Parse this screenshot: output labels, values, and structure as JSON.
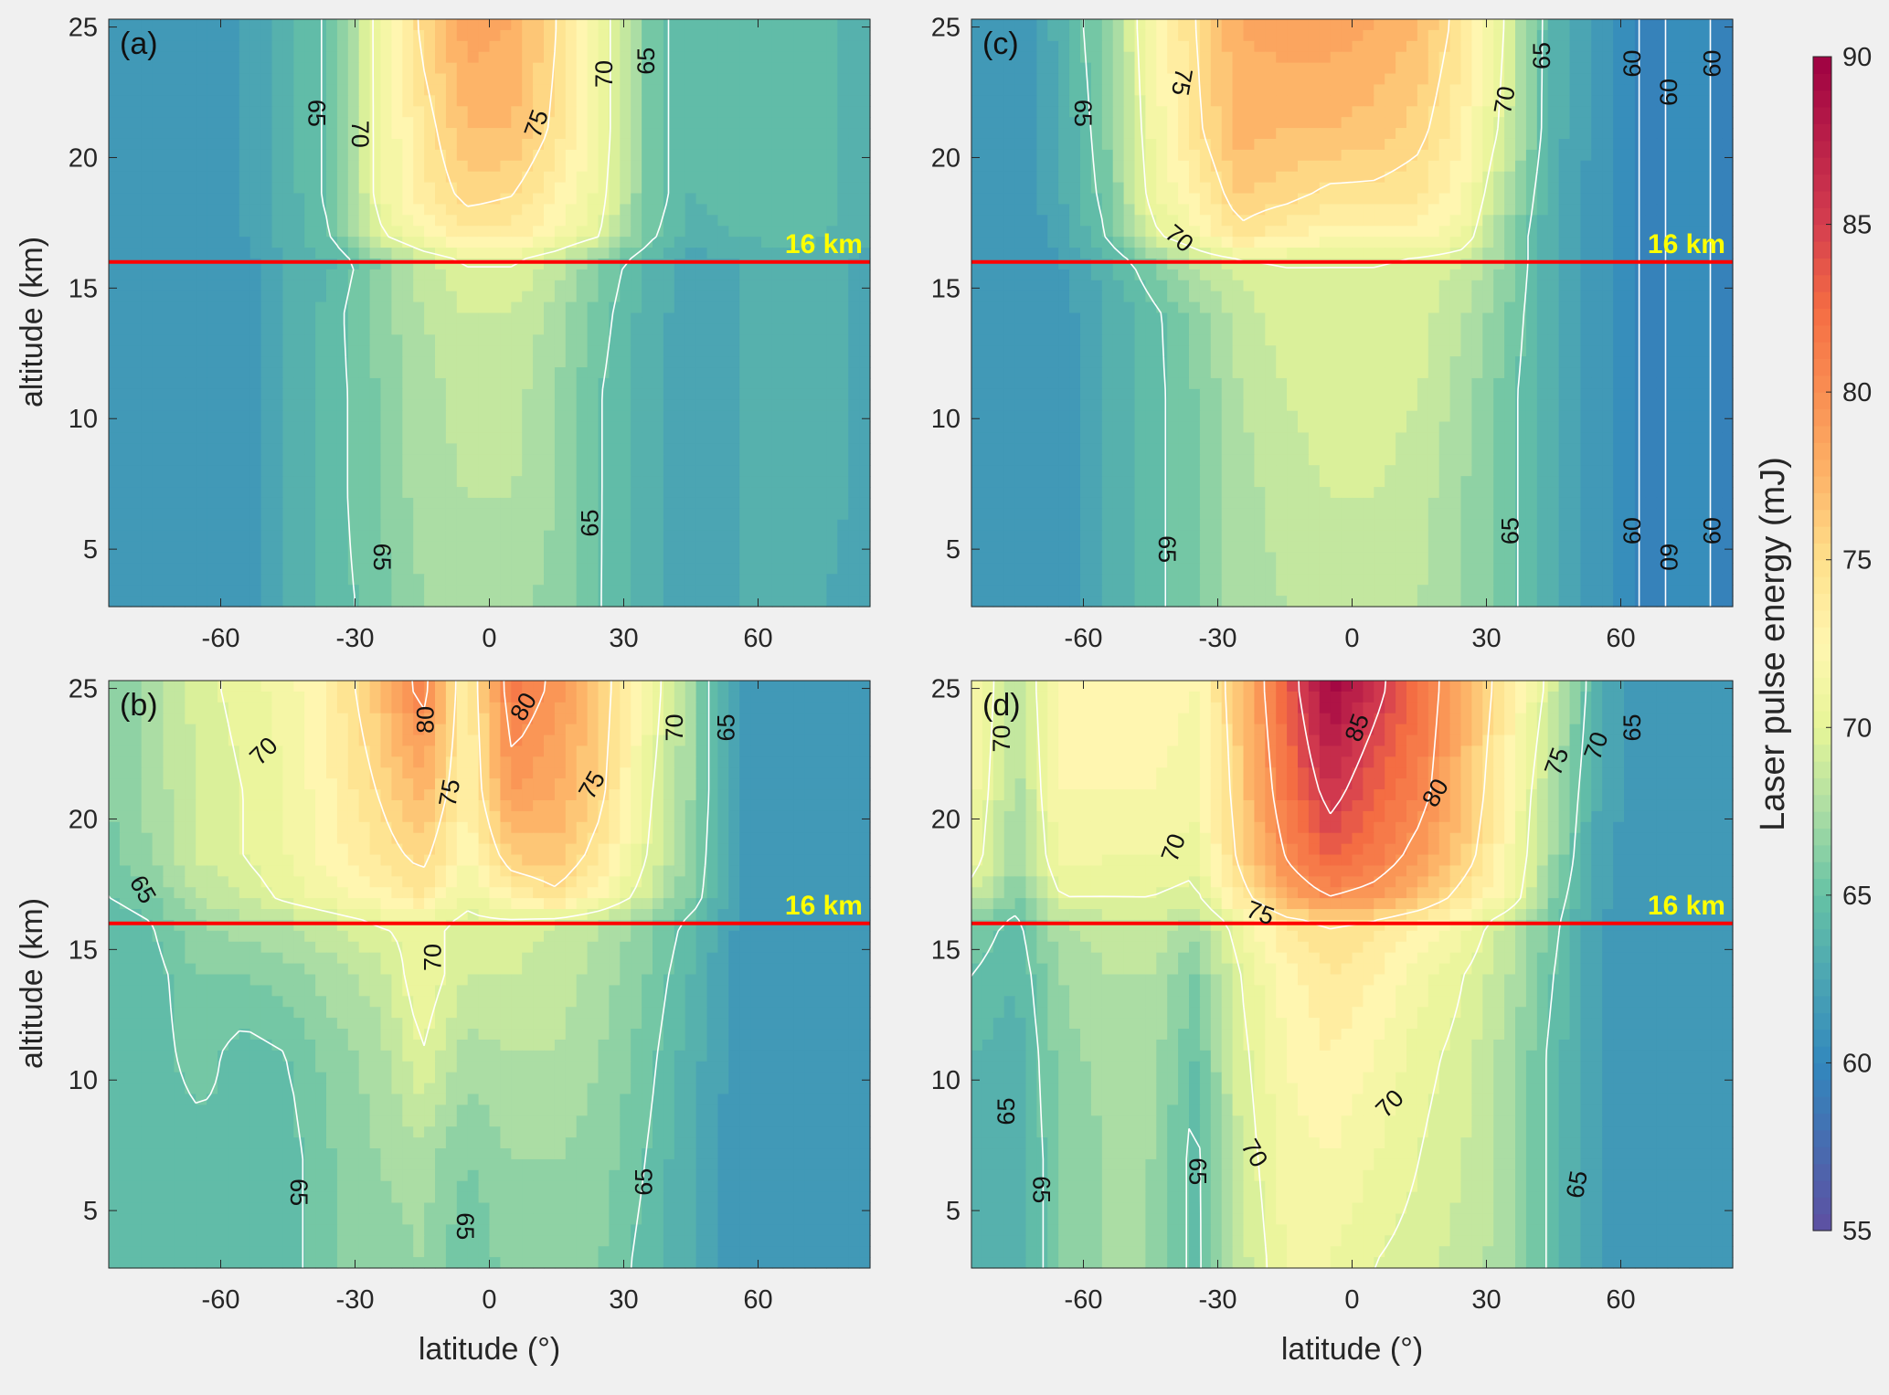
{
  "figure_background": "#f0f0f0",
  "colors": {
    "reference_line": "#ff0000",
    "reference_label": "#ffff00",
    "contour_line": "#ffffff"
  },
  "colorbar": {
    "label": "Laser pulse energy (mJ)",
    "range": [
      55,
      90
    ],
    "ticks": [
      55,
      60,
      65,
      70,
      75,
      80,
      85,
      90
    ],
    "colormap_stops": [
      [
        55,
        "#5e4fa2"
      ],
      [
        60,
        "#3288bd"
      ],
      [
        62.5,
        "#4ba5b3"
      ],
      [
        65,
        "#66c2a5"
      ],
      [
        67.5,
        "#abdda4"
      ],
      [
        70,
        "#e6f598"
      ],
      [
        72.5,
        "#fff6b0"
      ],
      [
        75,
        "#fee08b"
      ],
      [
        77.5,
        "#fdb468"
      ],
      [
        80,
        "#f98e52"
      ],
      [
        82.5,
        "#f46d43"
      ],
      [
        85,
        "#d53e4f"
      ],
      [
        90,
        "#9e0142"
      ]
    ]
  },
  "chart_data": [
    {
      "panel": "(a)",
      "type": "heatmap",
      "xlabel": "",
      "ylabel": "altitude (km)",
      "xlim": [
        -85,
        85
      ],
      "ylim": [
        2.8,
        25.3
      ],
      "xticks": [
        -60,
        -30,
        0,
        30,
        60
      ],
      "yticks": [
        5,
        10,
        15,
        20,
        25
      ],
      "lat": [
        -85,
        -75,
        -65,
        -55,
        -45,
        -35,
        -25,
        -15,
        -5,
        5,
        15,
        25,
        35,
        45,
        55,
        65,
        75,
        85
      ],
      "alt": [
        3,
        7,
        11,
        14,
        16,
        17,
        18.5,
        21,
        25
      ],
      "values": [
        [
          61,
          61,
          61,
          61.5,
          63,
          64.5,
          65.5,
          67,
          67.5,
          67.5,
          66.5,
          65,
          63.5,
          62.5,
          63,
          63.5,
          63,
          62
        ],
        [
          61,
          61,
          61,
          61.5,
          63,
          64.5,
          66,
          67.5,
          68,
          68,
          67,
          65,
          63.5,
          62.5,
          63,
          63.5,
          63.5,
          62.5
        ],
        [
          61,
          61,
          61,
          61.5,
          63,
          64.5,
          66,
          67.5,
          68.5,
          68.5,
          67,
          65,
          63.5,
          62.5,
          63,
          63.5,
          63.5,
          62.5
        ],
        [
          61,
          61,
          61,
          61.5,
          63,
          64.5,
          66.5,
          68,
          69,
          69,
          67.5,
          65.5,
          63.5,
          62.5,
          63,
          63.5,
          63.5,
          62.5
        ],
        [
          61,
          61,
          61,
          61.5,
          63,
          64,
          66,
          68.5,
          70,
          70,
          68.5,
          66,
          64,
          62.5,
          63,
          63.5,
          63.5,
          62.5
        ],
        [
          61,
          61,
          61,
          62,
          63.5,
          65,
          69.5,
          72,
          73.5,
          73.5,
          72,
          70,
          65.5,
          63.5,
          64,
          64.5,
          64,
          63
        ],
        [
          61,
          61,
          61,
          62,
          63.5,
          65.5,
          70.5,
          73.5,
          75.5,
          75,
          73,
          70.5,
          66,
          64,
          64.5,
          65,
          64.5,
          63
        ],
        [
          61,
          61,
          61,
          62,
          63.5,
          65.5,
          70.5,
          74,
          77,
          77,
          74.5,
          71,
          66,
          64,
          64.5,
          65,
          64.5,
          63
        ],
        [
          61,
          61,
          61,
          62,
          63.5,
          65.5,
          70.5,
          75.5,
          78.5,
          78,
          75,
          71,
          66,
          64,
          64.5,
          65,
          64.5,
          63
        ]
      ],
      "contour_levels": [
        60,
        65,
        70,
        75,
        80,
        85
      ],
      "contour_labels": [
        {
          "text": "65",
          "lat": -38.6,
          "alt": 21.7
        },
        {
          "text": "70",
          "lat": -28.9,
          "alt": 20.9
        },
        {
          "text": "75",
          "lat": 10.5,
          "alt": 21.3
        },
        {
          "text": "70",
          "lat": 25.6,
          "alt": 23.2
        },
        {
          "text": "65",
          "lat": 35,
          "alt": 23.7
        },
        {
          "text": "65",
          "lat": -24,
          "alt": 4.7
        },
        {
          "text": "65",
          "lat": 22.4,
          "alt": 6.0
        }
      ],
      "reference_line": {
        "alt": 16,
        "label": "16 km"
      }
    },
    {
      "panel": "(b)",
      "type": "heatmap",
      "xlabel": "latitude (°)",
      "ylabel": "altitude (km)",
      "xlim": [
        -85,
        85
      ],
      "ylim": [
        2.8,
        25.3
      ],
      "xticks": [
        -60,
        -30,
        0,
        30,
        60
      ],
      "yticks": [
        5,
        10,
        15,
        20,
        25
      ],
      "lat": [
        -85,
        -75,
        -65,
        -55,
        -45,
        -35,
        -25,
        -15,
        -5,
        5,
        15,
        25,
        35,
        45,
        55,
        65,
        75,
        85
      ],
      "alt": [
        3,
        7,
        11,
        14,
        16,
        17,
        18.5,
        21,
        25
      ],
      "values": [
        [
          64,
          64.5,
          64.5,
          65,
          64.5,
          66,
          66.5,
          67,
          65,
          66.5,
          66.5,
          66,
          64.5,
          63,
          61.5,
          61,
          61,
          61
        ],
        [
          64,
          64.5,
          64.5,
          65,
          64.5,
          66,
          67,
          67.5,
          66,
          67,
          67,
          66.5,
          65,
          63,
          61.5,
          61,
          61,
          61
        ],
        [
          64,
          64.5,
          65.5,
          64.5,
          65,
          66.5,
          67.5,
          70,
          67.5,
          68,
          68,
          67,
          65.5,
          63.5,
          61.5,
          61,
          61,
          61
        ],
        [
          64,
          64.5,
          66,
          66,
          66.5,
          67.5,
          68.5,
          71,
          69,
          69,
          68.5,
          67.5,
          66,
          64,
          61.5,
          61,
          61,
          61
        ],
        [
          64,
          65,
          67,
          67.5,
          68,
          69,
          70,
          70.5,
          69.5,
          69.5,
          69,
          68,
          66.5,
          64.5,
          62,
          61,
          61,
          61
        ],
        [
          65,
          66,
          68,
          69,
          70.5,
          71.5,
          72.5,
          74,
          70.5,
          73,
          74.5,
          72,
          69,
          66,
          62,
          61,
          61,
          61
        ],
        [
          65.5,
          67,
          69,
          70,
          71,
          72.5,
          74,
          75.5,
          72,
          76,
          76.5,
          74,
          70,
          66.5,
          62,
          61,
          61,
          61
        ],
        [
          66,
          67.5,
          69,
          70,
          71,
          73,
          75,
          77.5,
          73,
          79,
          78,
          75.5,
          70.5,
          67,
          62,
          61,
          61,
          61
        ],
        [
          66,
          67.5,
          69.5,
          70.5,
          71.5,
          73.5,
          76.5,
          81,
          73,
          81.5,
          79.5,
          76,
          71.5,
          67,
          62,
          61,
          61,
          61
        ]
      ],
      "contour_levels": [
        60,
        65,
        70,
        75,
        80,
        85
      ],
      "contour_labels": [
        {
          "text": "70",
          "lat": -50.4,
          "alt": 22.6
        },
        {
          "text": "80",
          "lat": -14.3,
          "alt": 23.8
        },
        {
          "text": "80",
          "lat": 7.6,
          "alt": 24.3
        },
        {
          "text": "75",
          "lat": -8.9,
          "alt": 21
        },
        {
          "text": "75",
          "lat": 22.9,
          "alt": 21.3
        },
        {
          "text": "70",
          "lat": 41.3,
          "alt": 23.5
        },
        {
          "text": "65",
          "lat": 52.9,
          "alt": 23.5
        },
        {
          "text": "65",
          "lat": -77.4,
          "alt": 17.3
        },
        {
          "text": "70",
          "lat": -12.7,
          "alt": 14.7
        },
        {
          "text": "65",
          "lat": -42.6,
          "alt": 5.7
        },
        {
          "text": "65",
          "lat": -5.4,
          "alt": 4.4
        },
        {
          "text": "65",
          "lat": 34.5,
          "alt": 6.1
        }
      ],
      "reference_line": {
        "alt": 16,
        "label": "16 km"
      }
    },
    {
      "panel": "(c)",
      "type": "heatmap",
      "xlabel": "",
      "ylabel": "",
      "xlim": [
        -85,
        85
      ],
      "ylim": [
        2.8,
        25.3
      ],
      "xticks": [
        -60,
        -30,
        0,
        30,
        60
      ],
      "yticks": [
        5,
        10,
        15,
        20,
        25
      ],
      "lat": [
        -85,
        -75,
        -65,
        -55,
        -45,
        -35,
        -25,
        -15,
        -5,
        5,
        15,
        25,
        35,
        45,
        55,
        65,
        75,
        85
      ],
      "alt": [
        3,
        7,
        11,
        14,
        16,
        17,
        18.5,
        21,
        25
      ],
      "values": [
        [
          61,
          61,
          61.5,
          63,
          64.5,
          66,
          67.5,
          68,
          68.5,
          68.5,
          68,
          67,
          65.5,
          63,
          61.5,
          59.8,
          60.2,
          59.8
        ],
        [
          61,
          61,
          61.5,
          63,
          64.5,
          66,
          67.5,
          68.5,
          69,
          69,
          68.5,
          67,
          65.5,
          63,
          61.5,
          59.8,
          60.2,
          59.8
        ],
        [
          61,
          61,
          61.5,
          63,
          64.5,
          66,
          68,
          69,
          69.5,
          69.5,
          69,
          67.5,
          65.5,
          63,
          61.5,
          59.8,
          60.2,
          59.8
        ],
        [
          61,
          61,
          61.5,
          63,
          64.5,
          66.5,
          68.5,
          69.5,
          69.5,
          69.5,
          69.5,
          68,
          66,
          63,
          61.5,
          59.8,
          60.2,
          59.8
        ],
        [
          61,
          61,
          62,
          63.5,
          66,
          68.5,
          69.5,
          70,
          70,
          70,
          69.5,
          69,
          66.5,
          63,
          61.5,
          59.8,
          60.2,
          59.8
        ],
        [
          61,
          61,
          62.5,
          65,
          69.5,
          71.5,
          74.5,
          73,
          72.5,
          72.5,
          72.5,
          71,
          66.5,
          63,
          61.5,
          59.8,
          60.2,
          59.8
        ],
        [
          61,
          61,
          63,
          65.5,
          70.5,
          73,
          76,
          75.5,
          74.5,
          74.5,
          74,
          72,
          67.5,
          63,
          61.5,
          59.8,
          60.2,
          59.8
        ],
        [
          61,
          61,
          63,
          66,
          71,
          74.5,
          77.5,
          77,
          77,
          76.5,
          75.5,
          73,
          69,
          63.5,
          61.5,
          59.8,
          60.2,
          59.8
        ],
        [
          61,
          61,
          63.5,
          66.5,
          71.5,
          75,
          78,
          78.5,
          78.5,
          78,
          77,
          74,
          69.5,
          63.5,
          61.5,
          59.8,
          60.2,
          59.8
        ]
      ],
      "contour_levels": [
        60,
        65,
        70,
        75,
        80,
        85
      ],
      "contour_labels": [
        {
          "text": "65",
          "lat": -60.1,
          "alt": 21.7
        },
        {
          "text": "75",
          "lat": -38,
          "alt": 22.9
        },
        {
          "text": "70",
          "lat": -38.6,
          "alt": 16.9
        },
        {
          "text": "70",
          "lat": 36.1,
          "alt": 22.2
        },
        {
          "text": "65",
          "lat": 42.3,
          "alt": 23.9
        },
        {
          "text": "60",
          "lat": 62.6,
          "alt": 23.6
        },
        {
          "text": "60",
          "lat": 70.7,
          "alt": 22.5
        },
        {
          "text": "60",
          "lat": 80.4,
          "alt": 23.6
        },
        {
          "text": "65",
          "lat": -41.3,
          "alt": 5.0
        },
        {
          "text": "65",
          "lat": 35.3,
          "alt": 5.7
        },
        {
          "text": "60",
          "lat": 62.6,
          "alt": 5.7
        },
        {
          "text": "60",
          "lat": 70.7,
          "alt": 4.7
        },
        {
          "text": "60",
          "lat": 80.4,
          "alt": 5.7
        }
      ],
      "reference_line": {
        "alt": 16,
        "label": "16 km"
      }
    },
    {
      "panel": "(d)",
      "type": "heatmap",
      "xlabel": "latitude (°)",
      "ylabel": "",
      "xlim": [
        -85,
        85
      ],
      "ylim": [
        2.8,
        25.3
      ],
      "xticks": [
        -60,
        -30,
        0,
        30,
        60
      ],
      "yticks": [
        5,
        10,
        15,
        20,
        25
      ],
      "lat": [
        -85,
        -75,
        -65,
        -55,
        -45,
        -35,
        -25,
        -15,
        -5,
        5,
        15,
        25,
        35,
        45,
        55,
        65,
        75,
        85
      ],
      "alt": [
        3,
        7,
        11,
        14,
        16,
        17,
        18.5,
        21,
        25
      ],
      "values": [
        [
          64,
          63.5,
          66,
          67,
          67,
          64.5,
          68.5,
          71,
          71,
          70,
          69.5,
          68.5,
          67.5,
          64.5,
          62,
          61,
          61,
          61
        ],
        [
          64,
          63.5,
          66,
          67,
          67,
          64.5,
          69,
          71.5,
          72,
          71,
          70,
          69,
          67.5,
          64.5,
          62,
          61,
          61,
          61
        ],
        [
          64,
          63.5,
          66.5,
          67.5,
          67.5,
          65,
          69.5,
          72,
          73,
          72,
          70.5,
          69.5,
          67.5,
          64.5,
          62,
          61,
          61,
          61
        ],
        [
          65,
          64,
          67,
          68,
          68,
          66,
          70,
          72.5,
          74,
          73,
          71.5,
          70,
          68,
          65,
          62,
          61,
          61,
          61
        ],
        [
          66,
          64.5,
          68,
          68.5,
          69,
          67.5,
          71,
          74,
          75,
          74.5,
          73,
          71.5,
          68.5,
          65.5,
          62,
          61,
          61,
          61
        ],
        [
          69,
          66,
          70,
          70,
          70,
          69.5,
          74,
          78,
          80,
          79,
          77,
          74,
          71.5,
          66,
          62.5,
          61,
          61,
          61
        ],
        [
          71,
          67,
          71.5,
          71,
          71,
          70.5,
          75.5,
          80,
          83,
          81.5,
          79,
          76,
          72,
          67,
          62.5,
          61,
          61,
          61
        ],
        [
          71.5,
          67.5,
          72,
          72,
          72,
          71.5,
          76,
          81.5,
          86,
          83,
          81,
          77,
          72.5,
          67.5,
          63,
          61,
          61,
          61
        ],
        [
          72,
          68,
          72.5,
          72.5,
          72.5,
          72,
          76.5,
          83,
          89.5,
          86,
          82,
          77.5,
          73.5,
          69,
          63.5,
          61,
          61,
          61
        ]
      ],
      "contour_levels": [
        60,
        65,
        70,
        75,
        80,
        85
      ],
      "contour_labels": [
        {
          "text": "70",
          "lat": -78.3,
          "alt": 23.5
        },
        {
          "text": "85",
          "lat": 1.1,
          "alt": 23.5
        },
        {
          "text": "80",
          "lat": 18.6,
          "alt": 21
        },
        {
          "text": "75",
          "lat": 46.9,
          "alt": 22.2
        },
        {
          "text": "70",
          "lat": 54.5,
          "alt": 22.8
        },
        {
          "text": "65",
          "lat": 62.6,
          "alt": 23.5
        },
        {
          "text": "70",
          "lat": -39.9,
          "alt": 18.9
        },
        {
          "text": "75",
          "lat": -20.5,
          "alt": 16.4
        },
        {
          "text": "65",
          "lat": -77.2,
          "alt": 8.8
        },
        {
          "text": "65",
          "lat": -69.4,
          "alt": 5.8
        },
        {
          "text": "65",
          "lat": -34.5,
          "alt": 6.5
        },
        {
          "text": "70",
          "lat": -21.8,
          "alt": 7.2
        },
        {
          "text": "70",
          "lat": 8.4,
          "alt": 9.1
        },
        {
          "text": "65",
          "lat": 50.2,
          "alt": 6.0
        }
      ],
      "reference_line": {
        "alt": 16,
        "label": "16 km"
      }
    }
  ]
}
